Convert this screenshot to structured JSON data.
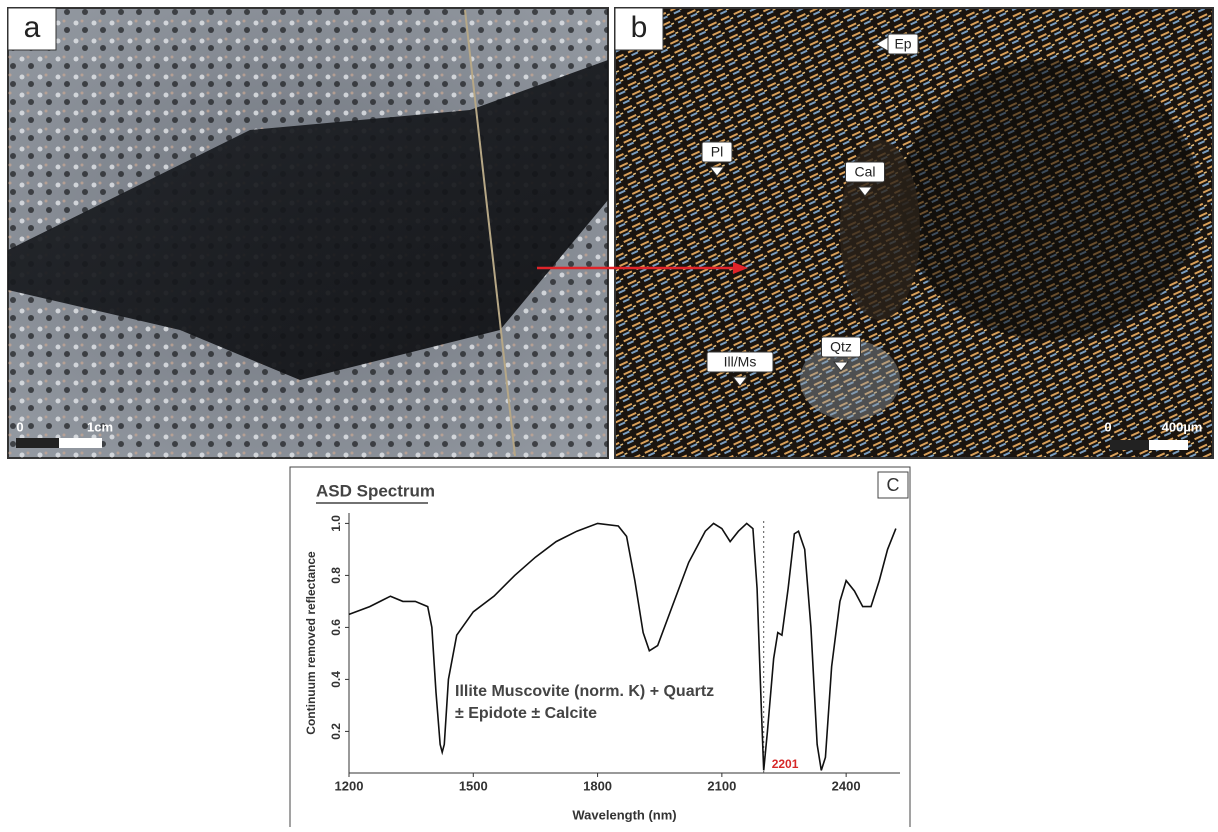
{
  "panels": [
    {
      "label": "a",
      "scale_labels": [
        "0",
        "1cm"
      ]
    },
    {
      "label": "b",
      "scale_labels": [
        "0",
        "400µm"
      ],
      "minerals": [
        "Ep",
        "Pl",
        "Cal",
        "Ill/Ms",
        "Qtz"
      ]
    }
  ],
  "chart_data": {
    "type": "line",
    "title": "ASD Spectrum",
    "panel_label": "C",
    "x_label": "Wavelength (nm)",
    "y_label": "Continuum removed reflectance",
    "annotation": [
      "Illite Muscovite (norm. K) + Quartz",
      "± Epidote ± Calcite"
    ],
    "marker": 2201,
    "marker_color": "#d62828",
    "color": "#111111",
    "x": [
      1200,
      1250,
      1300,
      1330,
      1360,
      1390,
      1400,
      1410,
      1420,
      1425,
      1430,
      1440,
      1460,
      1500,
      1550,
      1600,
      1650,
      1700,
      1750,
      1800,
      1850,
      1870,
      1890,
      1910,
      1925,
      1945,
      1980,
      2020,
      2060,
      2080,
      2100,
      2120,
      2140,
      2160,
      2175,
      2185,
      2195,
      2201,
      2210,
      2225,
      2235,
      2245,
      2260,
      2275,
      2285,
      2300,
      2315,
      2330,
      2340,
      2350,
      2365,
      2385,
      2400,
      2420,
      2440,
      2460,
      2480,
      2500,
      2520
    ],
    "values": [
      0.65,
      0.68,
      0.72,
      0.7,
      0.7,
      0.68,
      0.6,
      0.35,
      0.15,
      0.12,
      0.15,
      0.4,
      0.57,
      0.66,
      0.72,
      0.8,
      0.87,
      0.93,
      0.97,
      1.0,
      0.99,
      0.95,
      0.78,
      0.58,
      0.51,
      0.53,
      0.68,
      0.85,
      0.97,
      1.0,
      0.98,
      0.93,
      0.97,
      1.0,
      0.98,
      0.75,
      0.3,
      0.05,
      0.2,
      0.48,
      0.58,
      0.57,
      0.75,
      0.96,
      0.97,
      0.9,
      0.6,
      0.15,
      0.05,
      0.1,
      0.45,
      0.7,
      0.78,
      0.74,
      0.68,
      0.68,
      0.78,
      0.9,
      0.98
    ],
    "xlim": [
      1200,
      2530
    ],
    "ylim": [
      0.04,
      1.04
    ],
    "xticks": [
      1200,
      1500,
      1800,
      2100,
      2400
    ],
    "yticks": [
      0.2,
      0.4,
      0.6,
      0.8,
      {
        "value": 1,
        "label": "1.0"
      }
    ]
  }
}
